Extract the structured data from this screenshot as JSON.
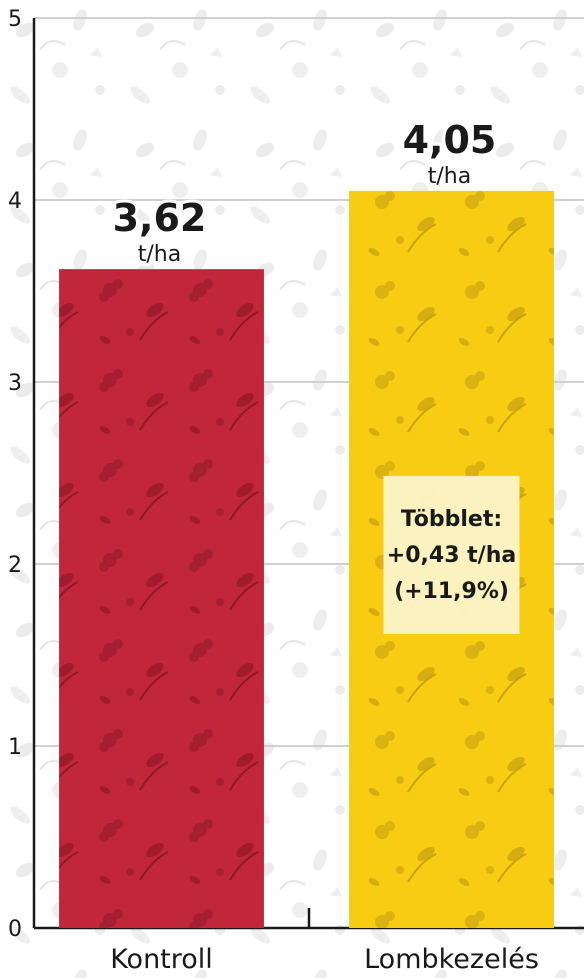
{
  "chart_data": {
    "type": "bar",
    "categories": [
      "Kontroll",
      "Lombkezelés"
    ],
    "values": [
      3.62,
      4.05
    ],
    "value_labels": [
      "3,62",
      "4,05"
    ],
    "unit": "t/ha",
    "ylim": [
      0,
      5
    ],
    "yticks": [
      "0",
      "1",
      "2",
      "3",
      "4",
      "5"
    ],
    "grid": true,
    "colors": [
      "#c1263a",
      "#f7cc12"
    ],
    "annotation": {
      "lines": [
        "Többlet:",
        "+0,43 t/ha",
        "(+11,9%)"
      ],
      "category_index": 1,
      "value_level": 2.05
    }
  }
}
